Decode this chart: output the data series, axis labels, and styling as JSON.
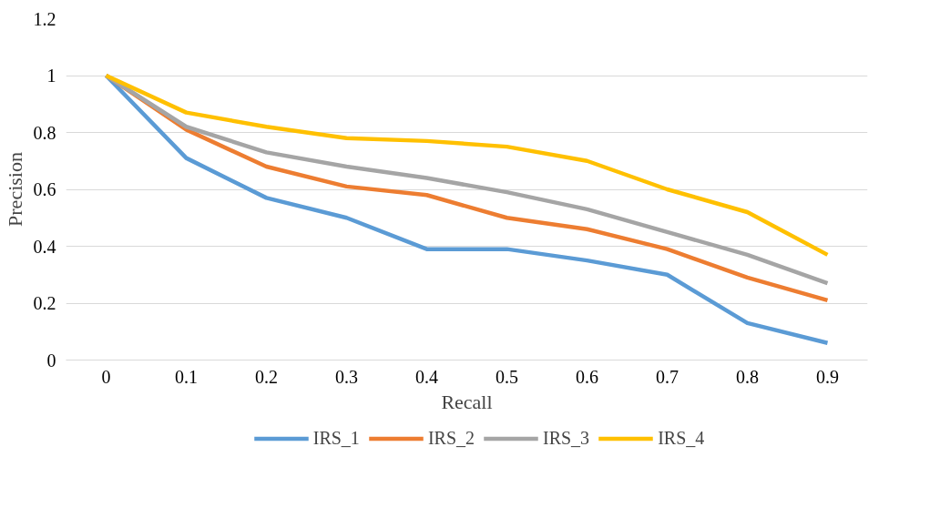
{
  "chart_data": {
    "type": "line",
    "xlabel": "Recall",
    "ylabel": "Precision",
    "categories": [
      "0",
      "0.1",
      "0.2",
      "0.3",
      "0.4",
      "0.5",
      "0.6",
      "0.7",
      "0.8",
      "0.9"
    ],
    "series": [
      {
        "name": "IRS_1",
        "color": "#5b9bd5",
        "values": [
          1,
          0.71,
          0.57,
          0.5,
          0.39,
          0.39,
          0.35,
          0.3,
          0.13,
          0.06
        ]
      },
      {
        "name": "IRS_2",
        "color": "#ed7d31",
        "values": [
          1,
          0.81,
          0.68,
          0.61,
          0.58,
          0.5,
          0.46,
          0.39,
          0.29,
          0.21
        ]
      },
      {
        "name": "IRS_3",
        "color": "#a5a5a5",
        "values": [
          1,
          0.82,
          0.73,
          0.68,
          0.64,
          0.59,
          0.53,
          0.45,
          0.37,
          0.27
        ]
      },
      {
        "name": "IRS_4",
        "color": "#ffc000",
        "values": [
          1,
          0.87,
          0.82,
          0.78,
          0.77,
          0.75,
          0.7,
          0.6,
          0.52,
          0.37
        ]
      }
    ],
    "ylim": [
      0,
      1.2
    ],
    "yticks": [
      0,
      0.2,
      0.4,
      0.6,
      0.8,
      1,
      1.2
    ],
    "grid": "y",
    "legend": "bottom",
    "marker": "none",
    "line_style": "solid"
  }
}
